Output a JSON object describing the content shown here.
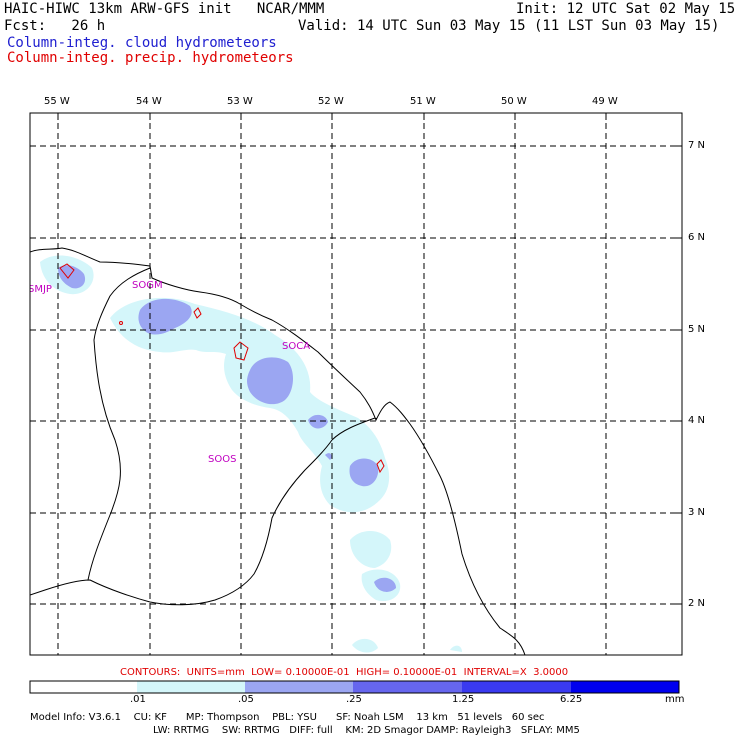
{
  "header": {
    "title": "HAIC-HIWC 13km ARW-GFS init   NCAR/MMM",
    "init": "Init: 12 UTC Sat 02 May 15",
    "fcst": "Fcst:   26 h",
    "valid": "Valid: 14 UTC Sun 03 May 15 (11 LST Sun 03 May 15)",
    "field1": "Column-integ. cloud hydrometeors",
    "field2": "Column-integ. precip. hydrometeors"
  },
  "colors": {
    "cloud_text": "#2020d0",
    "precip_text": "#e00000",
    "station": "#c000c0",
    "shade_1": "#d4f6fa",
    "shade_2": "#9ba6f2",
    "shade_3": "#6666ee",
    "shade_4": "#3a3af0",
    "shade_5": "#0000ee"
  },
  "longitude_labels": [
    "55 W",
    "54 W",
    "53 W",
    "52 W",
    "51 W",
    "50 W",
    "49 W"
  ],
  "latitude_labels": [
    "7 N",
    "6 N",
    "5 N",
    "4 N",
    "3 N",
    "2 N"
  ],
  "stations": [
    "SMJP",
    "SOGM",
    "SOCA",
    "SOOS"
  ],
  "contours_line": "CONTOURS:  UNITS=mm  LOW= 0.10000E-01  HIGH= 0.10000E-01  INTERVAL=X  3.0000",
  "colorbar": {
    "ticks": [
      ".01",
      ".05",
      ".25",
      "1.25",
      "6.25"
    ],
    "unit": "mm"
  },
  "model_info": {
    "line1": "Model Info: V3.6.1    CU: KF      MP: Thompson    PBL: YSU      SF: Noah LSM    13 km   51 levels   60 sec",
    "line2": "LW: RRTMG    SW: RRTMG   DIFF: full    KM: 2D Smagor DAMP: Rayleigh3   SFLAY: MM5"
  }
}
